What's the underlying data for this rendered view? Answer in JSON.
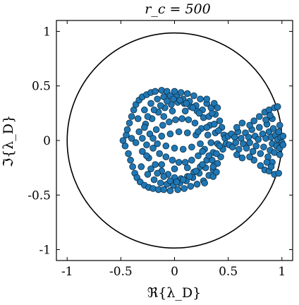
{
  "chart_data": {
    "type": "scatter",
    "title": "r_c = 500",
    "xlabel": "ℜ{λ_D}",
    "ylabel": "ℑ{λ_D}",
    "xlim": [
      -1.1,
      1.1
    ],
    "ylim": [
      -1.1,
      1.1
    ],
    "x_ticks": [
      -1,
      -0.5,
      0,
      0.5,
      1
    ],
    "x_tick_labels": [
      "-1",
      "-0.5",
      "0",
      "0.5",
      "1"
    ],
    "y_ticks": [
      1,
      0.5,
      0,
      -0.5,
      -1
    ],
    "y_tick_labels": [
      "1",
      "0.5",
      "0",
      "-0.5",
      "-1"
    ],
    "reference_circle_radius": 1,
    "grid": false,
    "marker_color": "#1f77b4",
    "series": [
      {
        "points": [
          [
            -0.48,
            0.0
          ],
          [
            -0.46,
            -0.05
          ],
          [
            -0.45,
            0.05
          ],
          [
            -0.44,
            0.1
          ],
          [
            -0.43,
            -0.12
          ],
          [
            -0.42,
            0.16
          ],
          [
            -0.41,
            -0.18
          ],
          [
            -0.4,
            0.22
          ],
          [
            -0.39,
            -0.24
          ],
          [
            -0.38,
            0.28
          ],
          [
            -0.37,
            -0.3
          ],
          [
            -0.36,
            0.33
          ],
          [
            -0.35,
            -0.34
          ],
          [
            -0.33,
            0.37
          ],
          [
            -0.32,
            -0.38
          ],
          [
            -0.3,
            0.4
          ],
          [
            -0.28,
            -0.41
          ],
          [
            -0.26,
            0.42
          ],
          [
            -0.24,
            -0.43
          ],
          [
            -0.22,
            0.44
          ],
          [
            -0.2,
            -0.44
          ],
          [
            -0.18,
            0.45
          ],
          [
            -0.15,
            -0.45
          ],
          [
            -0.12,
            0.46
          ],
          [
            -0.1,
            -0.45
          ],
          [
            -0.07,
            0.45
          ],
          [
            -0.04,
            -0.46
          ],
          [
            0.0,
            0.45
          ],
          [
            0.03,
            -0.45
          ],
          [
            0.06,
            0.44
          ],
          [
            0.09,
            -0.44
          ],
          [
            0.12,
            0.43
          ],
          [
            0.15,
            -0.42
          ],
          [
            0.18,
            0.41
          ],
          [
            0.21,
            -0.4
          ],
          [
            0.24,
            0.38
          ],
          [
            0.27,
            -0.37
          ],
          [
            0.3,
            0.34
          ],
          [
            0.32,
            -0.32
          ],
          [
            0.34,
            0.3
          ],
          [
            0.36,
            -0.27
          ],
          [
            0.38,
            0.24
          ],
          [
            0.4,
            -0.21
          ],
          [
            0.42,
            0.18
          ],
          [
            0.43,
            -0.15
          ],
          [
            0.44,
            0.12
          ],
          [
            0.45,
            -0.08
          ],
          [
            0.46,
            0.05
          ],
          [
            -0.4,
            0.02
          ],
          [
            -0.36,
            -0.02
          ],
          [
            -0.33,
            0.08
          ],
          [
            -0.3,
            -0.1
          ],
          [
            -0.27,
            0.15
          ],
          [
            -0.24,
            -0.16
          ],
          [
            -0.21,
            0.2
          ],
          [
            -0.18,
            -0.22
          ],
          [
            -0.15,
            0.26
          ],
          [
            -0.12,
            -0.28
          ],
          [
            -0.09,
            0.3
          ],
          [
            -0.06,
            -0.31
          ],
          [
            -0.03,
            0.33
          ],
          [
            0.0,
            -0.34
          ],
          [
            0.03,
            0.35
          ],
          [
            0.06,
            -0.35
          ],
          [
            0.09,
            0.34
          ],
          [
            0.12,
            -0.33
          ],
          [
            0.15,
            0.31
          ],
          [
            0.18,
            -0.29
          ],
          [
            0.21,
            0.27
          ],
          [
            0.24,
            -0.24
          ],
          [
            0.27,
            0.21
          ],
          [
            0.3,
            -0.18
          ],
          [
            0.33,
            0.14
          ],
          [
            0.36,
            -0.11
          ],
          [
            0.38,
            0.07
          ],
          [
            0.4,
            -0.03
          ],
          [
            -0.34,
            0.2
          ],
          [
            -0.31,
            -0.24
          ],
          [
            -0.28,
            0.28
          ],
          [
            -0.25,
            -0.31
          ],
          [
            -0.22,
            0.34
          ],
          [
            -0.19,
            -0.36
          ],
          [
            -0.16,
            0.38
          ],
          [
            -0.13,
            -0.39
          ],
          [
            -0.1,
            0.4
          ],
          [
            -0.07,
            -0.4
          ],
          [
            -0.04,
            0.41
          ],
          [
            -0.01,
            -0.41
          ],
          [
            0.02,
            0.4
          ],
          [
            0.05,
            -0.39
          ],
          [
            0.08,
            0.38
          ],
          [
            0.11,
            -0.37
          ],
          [
            0.14,
            0.36
          ],
          [
            0.17,
            -0.34
          ],
          [
            0.2,
            0.32
          ],
          [
            0.23,
            -0.3
          ],
          [
            0.26,
            0.28
          ],
          [
            0.29,
            -0.25
          ],
          [
            0.32,
            0.22
          ],
          [
            0.35,
            -0.18
          ],
          [
            0.37,
            0.15
          ],
          [
            0.39,
            -0.12
          ],
          [
            0.41,
            0.09
          ],
          [
            0.42,
            -0.05
          ],
          [
            -0.3,
            0.02
          ],
          [
            -0.26,
            -0.04
          ],
          [
            -0.23,
            0.06
          ],
          [
            -0.2,
            -0.07
          ],
          [
            -0.17,
            0.1
          ],
          [
            -0.14,
            -0.12
          ],
          [
            -0.11,
            0.14
          ],
          [
            -0.08,
            -0.15
          ],
          [
            -0.05,
            0.17
          ],
          [
            -0.02,
            -0.18
          ],
          [
            0.01,
            0.19
          ],
          [
            0.04,
            -0.2
          ],
          [
            0.07,
            0.2
          ],
          [
            0.1,
            -0.2
          ],
          [
            0.13,
            0.19
          ],
          [
            0.16,
            -0.18
          ],
          [
            0.19,
            0.16
          ],
          [
            0.22,
            -0.14
          ],
          [
            0.25,
            0.11
          ],
          [
            0.28,
            -0.08
          ],
          [
            0.31,
            0.05
          ],
          [
            0.34,
            -0.02
          ],
          [
            -0.25,
            0.22
          ],
          [
            -0.22,
            -0.26
          ],
          [
            -0.19,
            0.28
          ],
          [
            -0.16,
            -0.3
          ],
          [
            -0.13,
            0.32
          ],
          [
            -0.1,
            -0.33
          ],
          [
            -0.07,
            0.36
          ],
          [
            -0.04,
            -0.37
          ],
          [
            -0.01,
            0.38
          ],
          [
            0.02,
            -0.38
          ],
          [
            0.05,
            0.37
          ],
          [
            0.08,
            -0.36
          ],
          [
            0.11,
            0.34
          ],
          [
            0.14,
            -0.33
          ],
          [
            0.17,
            0.3
          ],
          [
            0.2,
            -0.28
          ],
          [
            0.23,
            0.25
          ],
          [
            0.26,
            -0.22
          ],
          [
            -0.2,
            0.02
          ],
          [
            -0.16,
            -0.03
          ],
          [
            -0.12,
            0.04
          ],
          [
            -0.08,
            -0.05
          ],
          [
            -0.04,
            0.06
          ],
          [
            0.0,
            -0.07
          ],
          [
            0.04,
            0.08
          ],
          [
            0.08,
            -0.08
          ],
          [
            0.12,
            0.07
          ],
          [
            0.16,
            -0.06
          ],
          [
            0.2,
            0.05
          ],
          [
            0.24,
            -0.03
          ],
          [
            -0.28,
            0.12
          ],
          [
            -0.26,
            -0.14
          ],
          [
            -0.02,
            0.27
          ],
          [
            0.0,
            -0.26
          ],
          [
            0.1,
            0.27
          ],
          [
            0.12,
            -0.25
          ],
          [
            0.22,
            0.08
          ],
          [
            0.26,
            -0.1
          ],
          [
            -0.1,
            0.22
          ],
          [
            -0.12,
            -0.22
          ],
          [
            0.3,
            0.12
          ],
          [
            0.32,
            -0.14
          ],
          [
            0.35,
            0.25
          ],
          [
            0.36,
            -0.24
          ],
          [
            0.37,
            0.34
          ],
          [
            0.36,
            -0.33
          ],
          [
            0.4,
            0.3
          ],
          [
            0.39,
            -0.29
          ],
          [
            0.3,
            0.38
          ],
          [
            0.28,
            -0.39
          ],
          [
            0.47,
            0.02
          ],
          [
            0.48,
            -0.03
          ],
          [
            0.5,
            0.04
          ],
          [
            0.51,
            -0.04
          ],
          [
            0.53,
            0.06
          ],
          [
            0.54,
            -0.06
          ],
          [
            0.56,
            0.03
          ],
          [
            0.57,
            -0.02
          ],
          [
            0.59,
            0.08
          ],
          [
            0.6,
            -0.08
          ],
          [
            0.62,
            0.02
          ],
          [
            0.64,
            -0.03
          ],
          [
            0.66,
            0.07
          ],
          [
            0.67,
            -0.07
          ],
          [
            0.69,
            0.03
          ],
          [
            0.7,
            -0.02
          ],
          [
            0.72,
            0.1
          ],
          [
            0.73,
            -0.1
          ],
          [
            0.75,
            0.04
          ],
          [
            0.76,
            -0.05
          ],
          [
            0.78,
            0.01
          ],
          [
            0.79,
            0.12
          ],
          [
            0.8,
            -0.12
          ],
          [
            0.82,
            0.06
          ],
          [
            0.83,
            -0.06
          ],
          [
            0.85,
            0.02
          ],
          [
            0.86,
            0.15
          ],
          [
            0.87,
            -0.15
          ],
          [
            0.88,
            0.08
          ],
          [
            0.89,
            -0.09
          ],
          [
            0.9,
            0.03
          ],
          [
            0.91,
            -0.03
          ],
          [
            0.92,
            0.11
          ],
          [
            0.93,
            -0.11
          ],
          [
            0.94,
            0.05
          ],
          [
            0.95,
            -0.05
          ],
          [
            0.96,
            0.01
          ],
          [
            0.97,
            0.08
          ],
          [
            0.98,
            -0.07
          ],
          [
            0.99,
            0.03
          ],
          [
            1.0,
            -0.02
          ],
          [
            1.01,
            0.04
          ],
          [
            1.01,
            -0.04
          ],
          [
            0.58,
            0.12
          ],
          [
            0.58,
            -0.13
          ],
          [
            0.63,
            0.16
          ],
          [
            0.63,
            -0.16
          ],
          [
            0.74,
            0.18
          ],
          [
            0.74,
            -0.18
          ],
          [
            0.84,
            0.26
          ],
          [
            0.84,
            -0.27
          ],
          [
            0.88,
            0.28
          ],
          [
            0.88,
            -0.28
          ],
          [
            0.93,
            0.3
          ],
          [
            0.93,
            -0.31
          ],
          [
            0.96,
            0.31
          ],
          [
            0.97,
            -0.3
          ],
          [
            0.79,
            0.22
          ],
          [
            0.8,
            -0.23
          ],
          [
            0.7,
            0.14
          ],
          [
            0.7,
            -0.15
          ],
          [
            0.91,
            0.2
          ],
          [
            0.91,
            -0.2
          ],
          [
            0.98,
            0.14
          ],
          [
            0.98,
            -0.13
          ],
          [
            0.89,
            0.23
          ],
          [
            0.9,
            -0.24
          ],
          [
            0.85,
            0.19
          ],
          [
            0.86,
            -0.2
          ]
        ]
      }
    ]
  }
}
